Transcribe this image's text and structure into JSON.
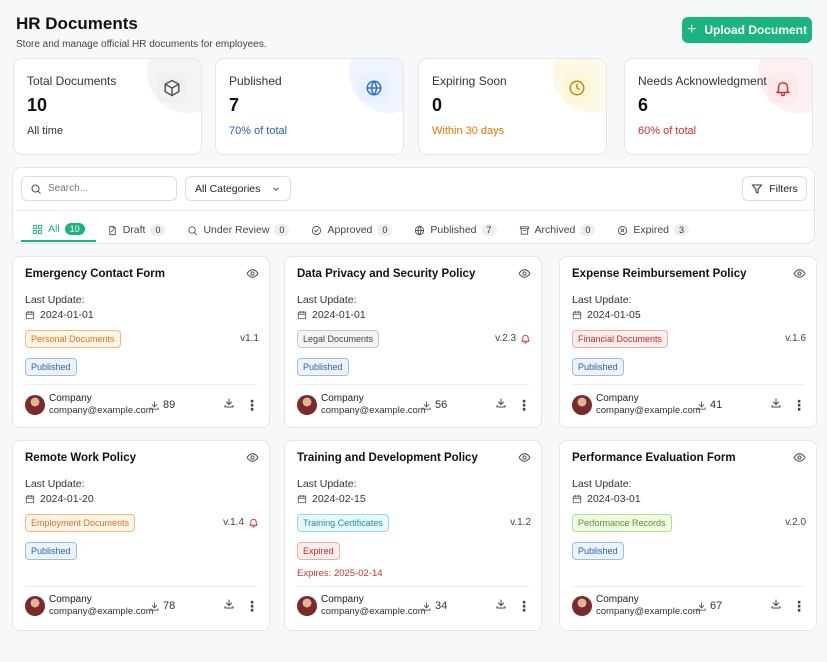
{
  "header": {
    "title": "HR Documents",
    "subtitle": "Store and manage official HR documents for employees.",
    "upload_label": "Upload Document"
  },
  "stats": [
    {
      "label": "Total Documents",
      "value": "10",
      "sub": "All time",
      "sub_color": "#333333",
      "icon": "box-icon",
      "tint": "#eef0f2",
      "icon_color": "#555555"
    },
    {
      "label": "Published",
      "value": "7",
      "sub": "70% of total",
      "sub_color": "#2a5fb0",
      "icon": "globe-icon",
      "tint": "#e8f0fd",
      "icon_color": "#2a6fd6"
    },
    {
      "label": "Expiring Soon",
      "value": "0",
      "sub": "Within 30 days",
      "sub_color": "#d97706",
      "icon": "clock-icon",
      "tint": "#fdf6dc",
      "icon_color": "#c28a00"
    },
    {
      "label": "Needs Acknowledgment",
      "value": "6",
      "sub": "60% of total",
      "sub_color": "#d32f2f",
      "icon": "bell-icon",
      "tint": "#fde9e9",
      "icon_color": "#d32f2f"
    }
  ],
  "toolbar": {
    "search_placeholder": "Search...",
    "category": "All Categories",
    "filters_label": "Filters"
  },
  "tabs": [
    {
      "label": "All",
      "count": "10",
      "icon": "grid-icon",
      "active": true
    },
    {
      "label": "Draft",
      "count": "0",
      "icon": "file-edit-icon"
    },
    {
      "label": "Under Review",
      "count": "0",
      "icon": "search-icon"
    },
    {
      "label": "Approved",
      "count": "0",
      "icon": "check-circle-icon"
    },
    {
      "label": "Published",
      "count": "7",
      "icon": "globe-icon"
    },
    {
      "label": "Archived",
      "count": "0",
      "icon": "archive-icon"
    },
    {
      "label": "Expired",
      "count": "3",
      "icon": "x-circle-icon"
    }
  ],
  "docs": [
    {
      "title": "Emergency Contact Form",
      "last_update_label": "Last Update:",
      "date": "2024-01-01",
      "category": "Personal Documents",
      "cat_colors": [
        "#fff4e8",
        "#f2b979",
        "#d9731a"
      ],
      "version": "v1.1",
      "bell": false,
      "status": "Published",
      "expires": "",
      "owner": "Company",
      "email": "company@example.com",
      "downloads": "89"
    },
    {
      "title": "Data Privacy and Security Policy",
      "last_update_label": "Last Update:",
      "date": "2024-01-01",
      "category": "Legal Documents",
      "cat_colors": [
        "#f3f4f6",
        "#c5c8cd",
        "#444444"
      ],
      "version": "v.2.3",
      "bell": true,
      "status": "Published",
      "expires": "",
      "owner": "Company",
      "email": "company@example.com",
      "downloads": "56"
    },
    {
      "title": "Expense Reimbursement Policy",
      "last_update_label": "Last Update:",
      "date": "2024-01-05",
      "category": "Financial Documents",
      "cat_colors": [
        "#fdeeee",
        "#f0a9a9",
        "#c62828"
      ],
      "version": "v.1.6",
      "bell": false,
      "status": "Published",
      "expires": "",
      "owner": "Company",
      "email": "company@example.com",
      "downloads": "41"
    },
    {
      "title": "Remote Work Policy",
      "last_update_label": "Last Update:",
      "date": "2024-01-20",
      "category": "Employment Documents",
      "cat_colors": [
        "#fff4e8",
        "#f2b979",
        "#d9731a"
      ],
      "version": "v.1.4",
      "bell": true,
      "status": "Published",
      "expires": "",
      "owner": "Company",
      "email": "company@example.com",
      "downloads": "78"
    },
    {
      "title": "Training and Development Policy",
      "last_update_label": "Last Update:",
      "date": "2024-02-15",
      "category": "Training Certificates",
      "cat_colors": [
        "#e9f8fb",
        "#97d8e6",
        "#1592ad"
      ],
      "version": "v.1.2",
      "bell": false,
      "status": "Expired",
      "expires": "Expires: 2025-02-14",
      "owner": "Company",
      "email": "company@example.com",
      "downloads": "34"
    },
    {
      "title": "Performance Evaluation Form",
      "last_update_label": "Last Update:",
      "date": "2024-03-01",
      "category": "Performance Records",
      "cat_colors": [
        "#f1fae6",
        "#b5df88",
        "#4f9a1c"
      ],
      "version": "v.2.0",
      "bell": false,
      "status": "Published",
      "expires": "",
      "owner": "Company",
      "email": "company@example.com",
      "downloads": "67"
    }
  ]
}
